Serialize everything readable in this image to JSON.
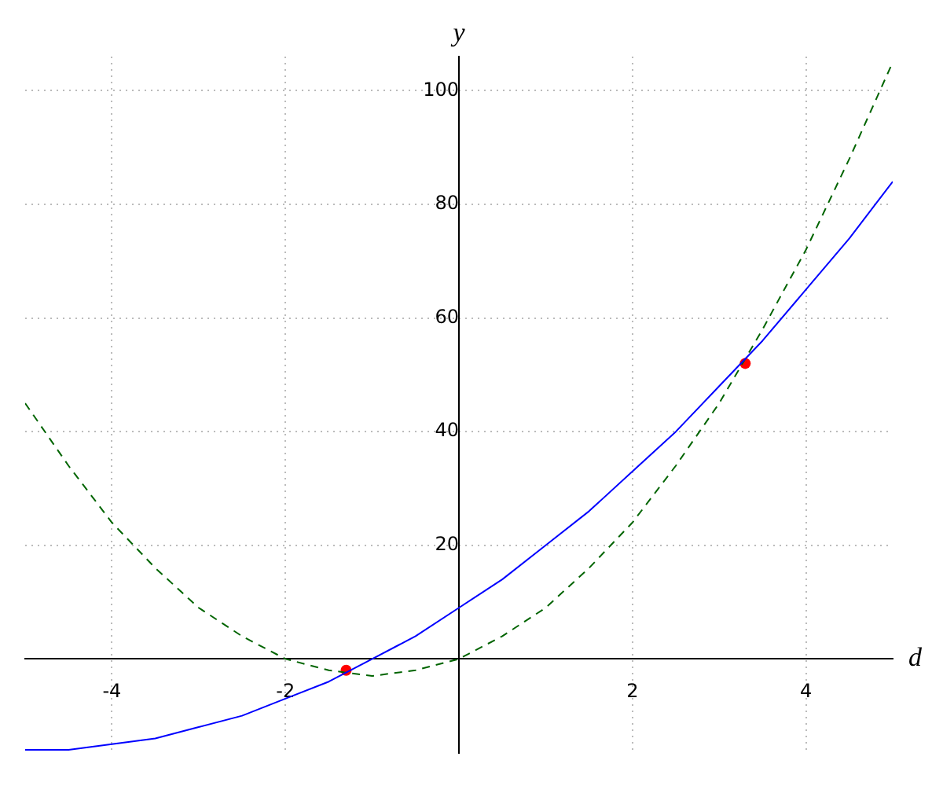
{
  "chart_data": {
    "type": "line",
    "xlabel": "d",
    "ylabel": "y",
    "xlim": [
      -5,
      5
    ],
    "ylim": [
      -16.5,
      106
    ],
    "xticks": [
      -4,
      -2,
      2,
      4
    ],
    "yticks": [
      20,
      40,
      60,
      80,
      100
    ],
    "grid": true,
    "x": [
      -5,
      -4.5,
      -4,
      -3.5,
      -3,
      -2.5,
      -2,
      -1.5,
      -1,
      -0.5,
      0,
      0.5,
      1,
      1.5,
      2,
      2.5,
      3,
      3.5,
      4,
      4.5,
      5
    ],
    "series": [
      {
        "color": "#0000ff",
        "line_style": "solid",
        "values": [
          -16,
          -16,
          -15,
          -14,
          -12,
          -10,
          -7,
          -4,
          0,
          4,
          9,
          14,
          20,
          26,
          33,
          40,
          48,
          56,
          65,
          74,
          84
        ]
      },
      {
        "color": "#006400",
        "line_style": "dashed",
        "values": [
          45,
          34,
          24,
          16,
          9,
          4,
          0,
          -2,
          -3,
          -2,
          0,
          4,
          9,
          16,
          24,
          34,
          45,
          58,
          72,
          88,
          105
        ]
      },
      {
        "type": "scatter",
        "color": "#ff0000",
        "marker": "circle",
        "x": [
          -1.3,
          3.3
        ],
        "values": [
          -2,
          52
        ]
      }
    ]
  }
}
